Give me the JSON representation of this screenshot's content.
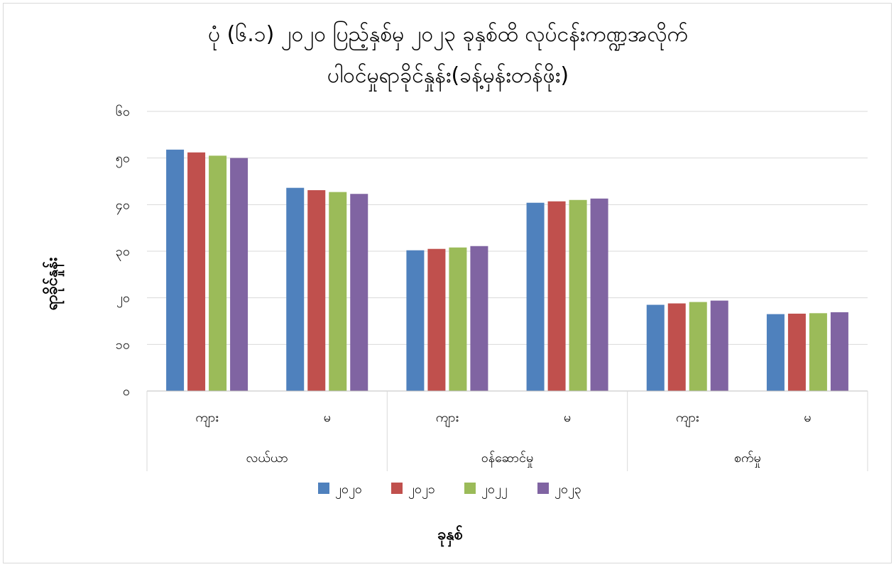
{
  "chart_data": {
    "type": "bar",
    "title_line1": "ပုံ (၆.၁) ၂၀၂၀ ပြည့်နှစ်မှ ၂၀၂၃ ခုနှစ်ထိ လုပ်ငန်းကဏ္ဍအလိုက်",
    "title_line2": "ပါဝင်မှုရာခိုင်နှုန်း(ခန့်မှန်းတန်ဖိုး)",
    "xlabel": "ခုနှစ်",
    "ylabel": "ရာခိုင်နှုန်း",
    "ylim": [
      0,
      60
    ],
    "yticks": [
      0,
      10,
      20,
      30,
      40,
      50,
      60
    ],
    "ytick_labels": [
      "၀",
      "၁၀",
      "၂၀",
      "၃၀",
      "၄၀",
      "၅၀",
      "၆၀"
    ],
    "grid": true,
    "legend_position": "bottom",
    "groups": [
      {
        "name": "လယ်ယာ",
        "categories": [
          "ကျား",
          "မ"
        ]
      },
      {
        "name": "ဝန်ဆောင်မှု",
        "categories": [
          "ကျား",
          "မ"
        ]
      },
      {
        "name": "စက်မှု",
        "categories": [
          "ကျား",
          "မ"
        ]
      }
    ],
    "categories": [
      "ကျား",
      "မ",
      "ကျား",
      "မ",
      "ကျား",
      "မ"
    ],
    "series": [
      {
        "name": "၂၀၂၀",
        "color": "#4f81bd",
        "values": [
          51.8,
          43.6,
          30.2,
          40.4,
          18.5,
          16.5
        ]
      },
      {
        "name": "၂၀၂၁",
        "color": "#c0504d",
        "values": [
          51.2,
          43.1,
          30.5,
          40.7,
          18.8,
          16.6
        ]
      },
      {
        "name": "၂၀၂၂",
        "color": "#9bbb59",
        "values": [
          50.5,
          42.7,
          30.8,
          41.0,
          19.1,
          16.7
        ]
      },
      {
        "name": "၂၀၂၃",
        "color": "#8064a2",
        "values": [
          50.0,
          42.3,
          31.1,
          41.3,
          19.4,
          16.9
        ]
      }
    ]
  }
}
